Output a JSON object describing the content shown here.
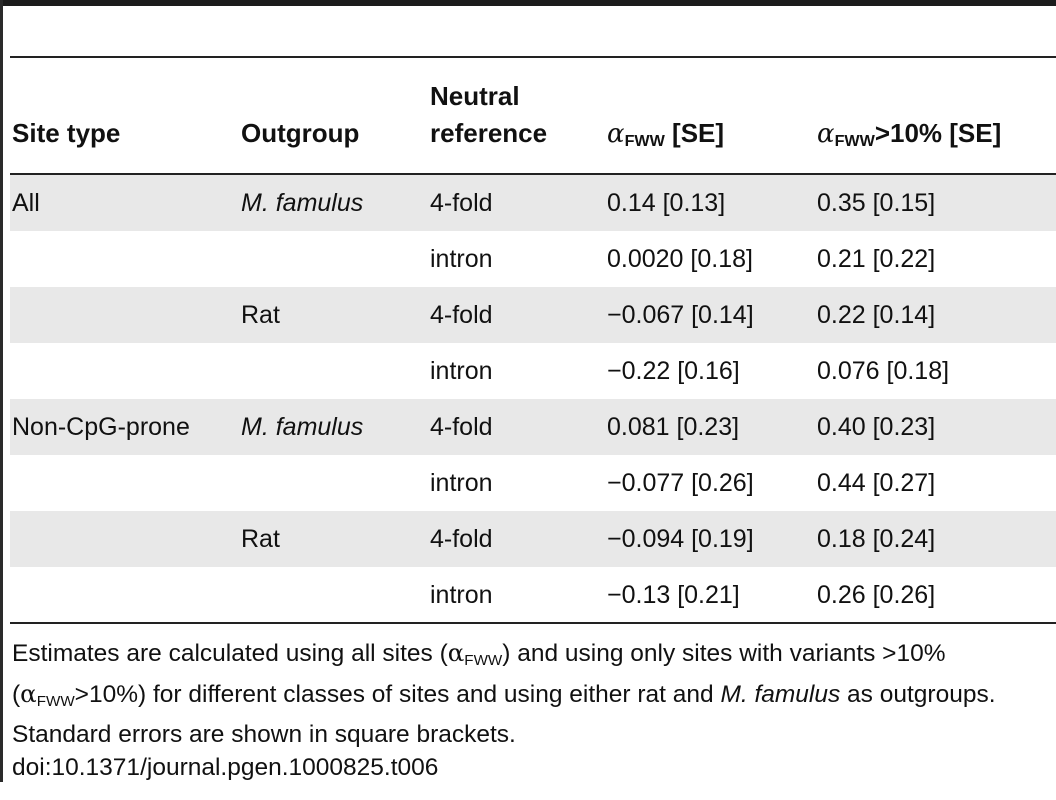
{
  "table": {
    "headers": {
      "site_type": "Site type",
      "outgroup": "Outgroup",
      "neutral_line1": "Neutral",
      "neutral_line2": "reference",
      "alpha_symbol": "α",
      "alpha_sub": "FWW",
      "alpha_se": " [SE]",
      "alpha10_symbol": "α",
      "alpha10_sub": "FWW",
      "alpha10_rest": ">10% [SE]"
    },
    "rows": [
      {
        "site_type": "All",
        "outgroup": "M. famulus",
        "neutral": "4-fold",
        "alpha": "0.14 [0.13]",
        "alpha10": "0.35 [0.15]"
      },
      {
        "site_type": "",
        "outgroup": "",
        "neutral": "intron",
        "alpha": "0.0020 [0.18]",
        "alpha10": "0.21 [0.22]"
      },
      {
        "site_type": "",
        "outgroup": "Rat",
        "neutral": "4-fold",
        "alpha": "−0.067 [0.14]",
        "alpha10": "0.22 [0.14]"
      },
      {
        "site_type": "",
        "outgroup": "",
        "neutral": "intron",
        "alpha": "−0.22 [0.16]",
        "alpha10": "0.076 [0.18]"
      },
      {
        "site_type": "Non-CpG-prone",
        "outgroup": "M. famulus",
        "neutral": "4-fold",
        "alpha": "0.081 [0.23]",
        "alpha10": "0.40 [0.23]"
      },
      {
        "site_type": "",
        "outgroup": "",
        "neutral": "intron",
        "alpha": "−0.077 [0.26]",
        "alpha10": "0.44 [0.27]"
      },
      {
        "site_type": "",
        "outgroup": "Rat",
        "neutral": "4-fold",
        "alpha": "−0.094 [0.19]",
        "alpha10": "0.18 [0.24]"
      },
      {
        "site_type": "",
        "outgroup": "",
        "neutral": "intron",
        "alpha": "−0.13 [0.21]",
        "alpha10": "0.26 [0.26]"
      }
    ]
  },
  "footnote": {
    "p1": "Estimates are calculated using all sites (",
    "alpha_a": "α",
    "sub_a": "FWW",
    "p2": ") and using only sites with variants >10% (",
    "alpha_b": "α",
    "sub_b": "FWW",
    "p3": ">10%) for different classes of sites and using either rat and ",
    "italic_species": "M. famulus",
    "p4": " as outgroups. Standard errors are shown in square brackets.",
    "doi": "doi:10.1371/journal.pgen.1000825.t006"
  }
}
